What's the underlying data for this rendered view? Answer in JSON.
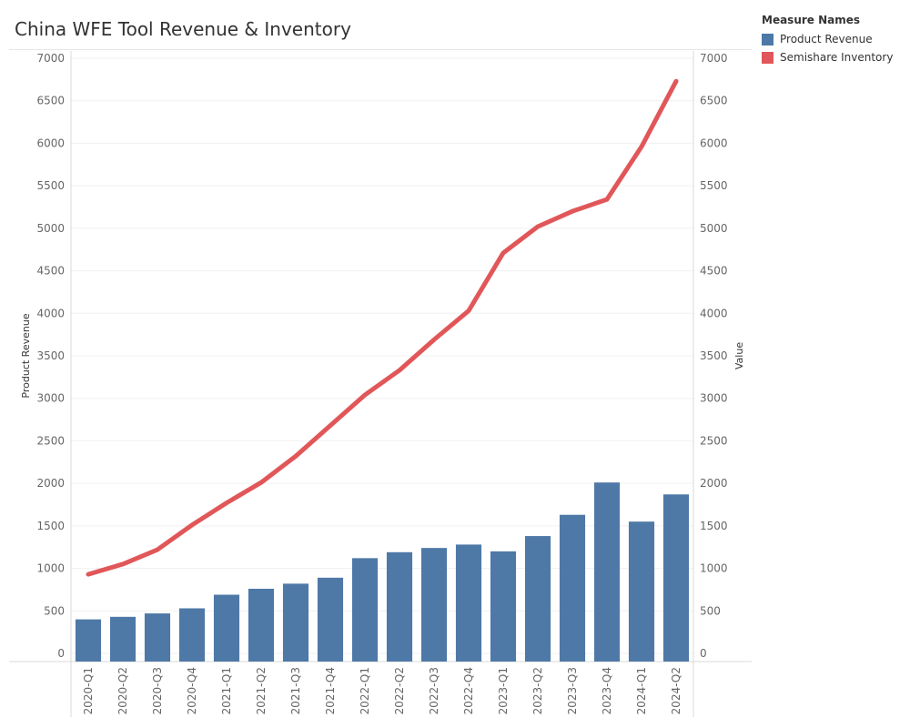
{
  "title": "China WFE Tool Revenue & Inventory",
  "legend": {
    "title": "Measure Names",
    "items": [
      {
        "label": "Product Revenue",
        "color": "#4e79a7"
      },
      {
        "label": "Semishare Inventory",
        "color": "#e15759"
      }
    ]
  },
  "chart_data": {
    "type": "bar",
    "title": "China WFE Tool Revenue & Inventory",
    "categories": [
      "2020-Q1",
      "2020-Q2",
      "2020-Q3",
      "2020-Q4",
      "2021-Q1",
      "2021-Q2",
      "2021-Q3",
      "2021-Q4",
      "2022-Q1",
      "2022-Q2",
      "2022-Q3",
      "2022-Q4",
      "2023-Q1",
      "2023-Q2",
      "2023-Q3",
      "2023-Q4",
      "2024-Q1",
      "2024-Q2"
    ],
    "series": [
      {
        "name": "Product Revenue",
        "type": "bar",
        "color": "#4e79a7",
        "values": [
          400,
          430,
          470,
          530,
          690,
          760,
          820,
          890,
          1120,
          1190,
          1240,
          1280,
          1200,
          1380,
          1630,
          2010,
          1550,
          1870
        ]
      },
      {
        "name": "Semishare Inventory",
        "type": "line",
        "color": "#e15759",
        "values": [
          930,
          1050,
          1220,
          1510,
          1770,
          2010,
          2320,
          2680,
          3040,
          3330,
          3690,
          4030,
          4710,
          5020,
          5200,
          5340,
          5960,
          6730
        ]
      }
    ],
    "ylabel": "Product Revenue",
    "ylabel_right": "Value",
    "xlabel": "",
    "ylim": [
      0,
      7000
    ],
    "yticks": [
      0,
      500,
      1000,
      1500,
      2000,
      2500,
      3000,
      3500,
      4000,
      4500,
      5000,
      5500,
      6000,
      6500,
      7000
    ],
    "grid": true
  }
}
